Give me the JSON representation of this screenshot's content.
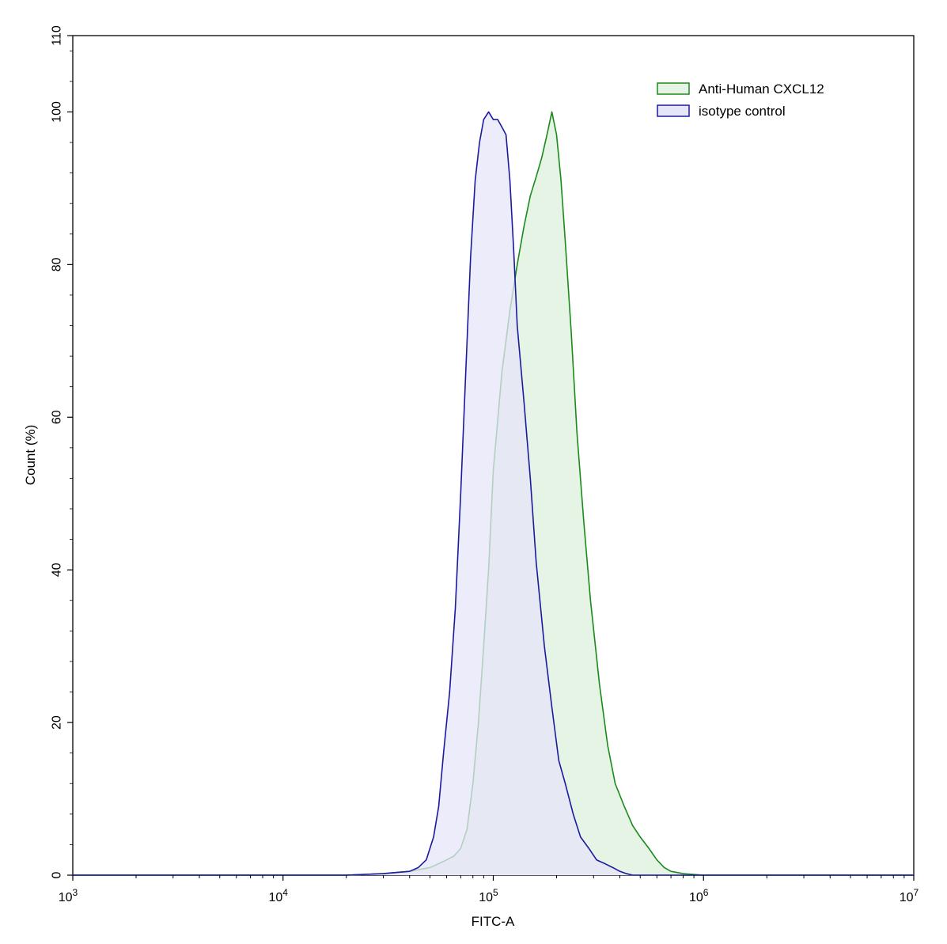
{
  "chart_data": {
    "type": "area",
    "xlabel": "FITC-A",
    "ylabel": "Count (%)",
    "x_scale": "log",
    "xlim": [
      1000,
      10000000
    ],
    "ylim": [
      0,
      110
    ],
    "grid": false,
    "legend_position": "top-right",
    "x_ticks": [
      {
        "value": 1000,
        "base": "10",
        "exp": "3"
      },
      {
        "value": 10000,
        "base": "10",
        "exp": "4"
      },
      {
        "value": 100000,
        "base": "10",
        "exp": "5"
      },
      {
        "value": 1000000,
        "base": "10",
        "exp": "6"
      },
      {
        "value": 10000000,
        "base": "10",
        "exp": "7"
      }
    ],
    "y_ticks": [
      0,
      20,
      40,
      60,
      80,
      100,
      110
    ],
    "series": [
      {
        "name": "Anti-Human CXCL12",
        "color": "#1a8a1a",
        "fill": "#e6f4e6",
        "x": [
          1000,
          20000,
          30000,
          40000,
          50000,
          55000,
          60000,
          65000,
          70000,
          75000,
          80000,
          85000,
          90000,
          95000,
          100000,
          110000,
          120000,
          130000,
          140000,
          150000,
          160000,
          170000,
          180000,
          190000,
          200000,
          210000,
          220000,
          235000,
          250000,
          270000,
          290000,
          320000,
          350000,
          380000,
          420000,
          460000,
          500000,
          550000,
          600000,
          650000,
          700000,
          800000,
          1000000,
          10000000
        ],
        "y": [
          0,
          0,
          0.2,
          0.5,
          1,
          1.5,
          2,
          2.5,
          3.5,
          6,
          12,
          20,
          30,
          40,
          53,
          66,
          74,
          80,
          85,
          89,
          91.5,
          94,
          97,
          100,
          97,
          91,
          83,
          71,
          58,
          46,
          36,
          25,
          17,
          12,
          9,
          6.5,
          5,
          3.5,
          2,
          1,
          0.5,
          0.2,
          0,
          0
        ]
      },
      {
        "name": "isotype control",
        "color": "#1a1aa0",
        "fill": "#e6e6f8",
        "x": [
          1000,
          20000,
          30000,
          40000,
          44000,
          48000,
          52000,
          55000,
          58000,
          62000,
          66000,
          70000,
          74000,
          78000,
          82000,
          86000,
          90000,
          95000,
          100000,
          105000,
          110000,
          115000,
          120000,
          125000,
          130000,
          140000,
          150000,
          160000,
          175000,
          190000,
          205000,
          220000,
          240000,
          260000,
          285000,
          310000,
          340000,
          370000,
          400000,
          430000,
          460000,
          1000000,
          10000000
        ],
        "y": [
          0,
          0,
          0.2,
          0.5,
          1,
          2,
          5,
          9,
          16,
          24,
          35,
          50,
          66,
          81,
          91,
          96,
          99,
          100,
          99,
          99,
          98,
          97,
          91,
          82,
          72,
          62,
          52,
          41,
          30,
          22,
          15,
          12,
          8,
          5,
          3.5,
          2,
          1.5,
          1,
          0.5,
          0.2,
          0,
          0,
          0
        ]
      }
    ]
  }
}
